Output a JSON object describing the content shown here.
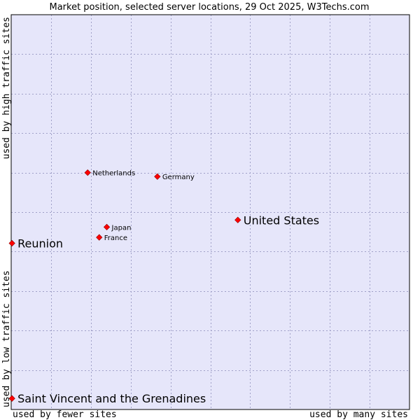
{
  "chart_data": {
    "type": "scatter",
    "title": "Market position, selected server locations, 29 Oct 2025, W3Techs.com",
    "xlabel_left": "used by fewer sites",
    "xlabel_right": "used by many sites",
    "ylabel_bottom": "used by low traffic sites",
    "ylabel_top": "used by high traffic sites",
    "xlim": [
      0,
      100
    ],
    "ylim": [
      0,
      100
    ],
    "grid": true,
    "colors": {
      "plot_background": "#e6e6fa",
      "grid": "#a0a0c8",
      "frame": "#000000",
      "marker": "#ff0000",
      "marker_edge": "#8b0000"
    },
    "points": [
      {
        "label": "Netherlands",
        "x": 19.2,
        "y": 60.0,
        "size": "small"
      },
      {
        "label": "Germany",
        "x": 36.7,
        "y": 59.0,
        "size": "small"
      },
      {
        "label": "United States",
        "x": 56.9,
        "y": 48.0,
        "size": "large"
      },
      {
        "label": "Japan",
        "x": 24.0,
        "y": 46.2,
        "size": "small"
      },
      {
        "label": "France",
        "x": 22.1,
        "y": 43.6,
        "size": "small"
      },
      {
        "label": "Reunion",
        "x": 0.2,
        "y": 42.1,
        "size": "large"
      },
      {
        "label": "Saint Vincent and the Grenadines",
        "x": 0.2,
        "y": 2.8,
        "size": "large"
      }
    ]
  }
}
